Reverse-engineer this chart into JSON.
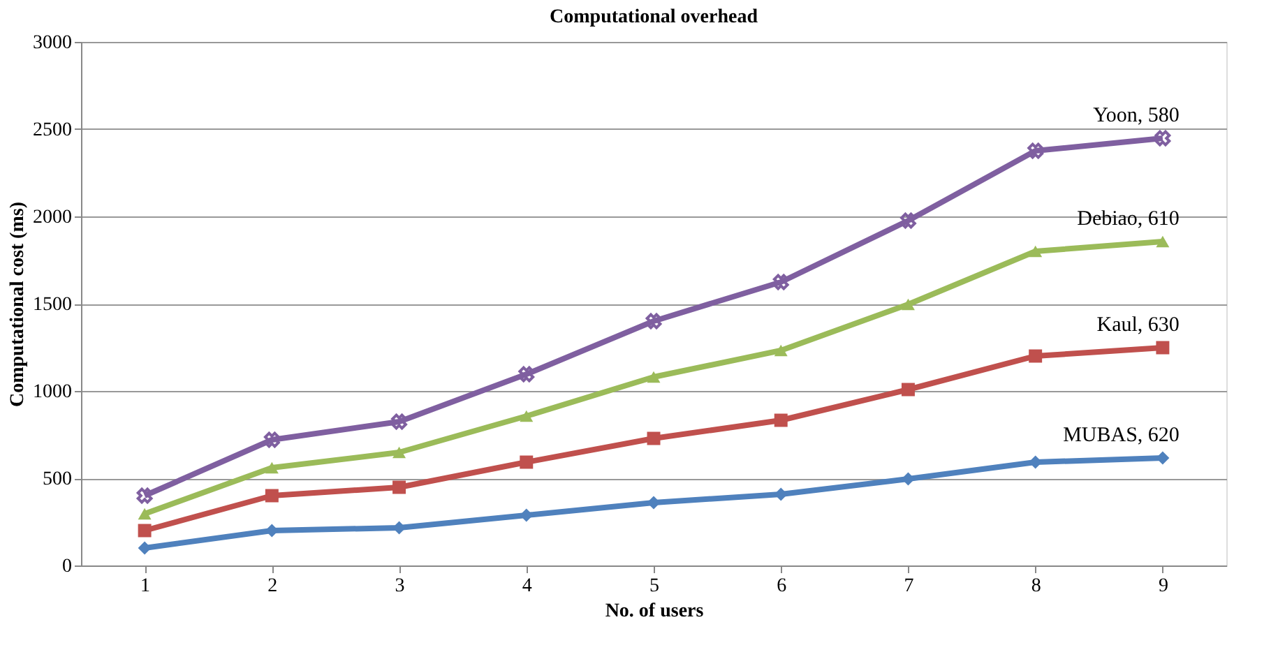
{
  "chart_data": {
    "type": "line",
    "title": "Computational overhead",
    "xlabel": "No. of users",
    "ylabel": "Computational cost (ms)",
    "categories": [
      "1",
      "2",
      "3",
      "4",
      "5",
      "6",
      "7",
      "8",
      "9"
    ],
    "ylim": [
      0,
      3000
    ],
    "yticks": [
      0,
      500,
      1000,
      1500,
      2000,
      2500,
      3000
    ],
    "grid": "y",
    "legend": false,
    "series": [
      {
        "name": "Yoon, 580",
        "color": "#7f5fa0",
        "marker": "cross",
        "values": [
          400,
          720,
          824,
          1096,
          1400,
          1624,
          1976,
          2376,
          2448
        ]
      },
      {
        "name": "Debiao, 610",
        "color": "#9bbb59",
        "marker": "triangle",
        "values": [
          296,
          560,
          648,
          856,
          1080,
          1232,
          1496,
          1800,
          1856
        ]
      },
      {
        "name": "Kaul, 630",
        "color": "#c0504d",
        "marker": "square",
        "values": [
          200,
          400,
          448,
          592,
          728,
          832,
          1008,
          1200,
          1248
        ]
      },
      {
        "name": "MUBAS, 620",
        "color": "#4f81bd",
        "marker": "diamond",
        "values": [
          100,
          200,
          216,
          288,
          360,
          408,
          496,
          592,
          616
        ]
      }
    ]
  }
}
